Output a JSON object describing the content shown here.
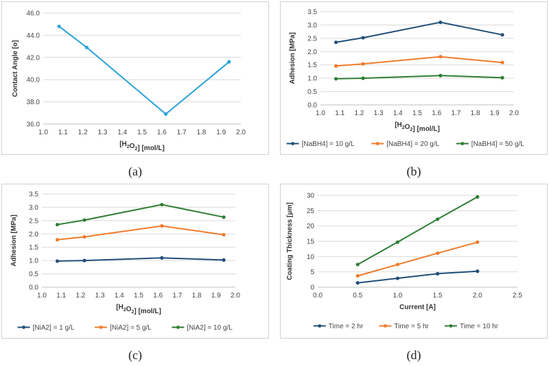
{
  "captions": [
    "(a)",
    "(b)",
    "(c)",
    "(d)"
  ],
  "chart_data": [
    {
      "type": "line",
      "xlabel": "[H2O2] [mol/L]",
      "ylabel": "Contact Angle [o]",
      "xlim": [
        1.0,
        2.0
      ],
      "xstep": 0.1,
      "xdec": 1,
      "ylim": [
        36.0,
        46.0
      ],
      "ystep": 2.0,
      "ydec": 1,
      "grid": "horizontal",
      "legend": "none",
      "series": [
        {
          "name": "",
          "color": "#29a3d8",
          "x": [
            1.08,
            1.22,
            1.62,
            1.94
          ],
          "y": [
            44.8,
            42.9,
            36.9,
            41.6
          ]
        }
      ]
    },
    {
      "type": "line",
      "xlabel": "[H2O2] [mol/L]",
      "ylabel": "Adhesion [MPa]",
      "xlim": [
        1.0,
        2.0
      ],
      "xstep": 0.1,
      "xdec": 1,
      "ylim": [
        0.0,
        3.5
      ],
      "ystep": 0.5,
      "ydec": 1,
      "grid": "horizontal",
      "legend": "bottom",
      "series": [
        {
          "name": "[NaBH4] = 10 g/L",
          "color": "#1f4e79",
          "x": [
            1.08,
            1.22,
            1.62,
            1.94
          ],
          "y": [
            2.35,
            2.52,
            3.1,
            2.63
          ]
        },
        {
          "name": "[NaBH4] = 20 g/L",
          "color": "#f07a2a",
          "x": [
            1.08,
            1.22,
            1.62,
            1.94
          ],
          "y": [
            1.46,
            1.54,
            1.81,
            1.59
          ]
        },
        {
          "name": "[NaBH4] = 50 g/L",
          "color": "#2e7d32",
          "x": [
            1.08,
            1.22,
            1.62,
            1.94
          ],
          "y": [
            0.98,
            1.0,
            1.1,
            1.02
          ]
        }
      ]
    },
    {
      "type": "line",
      "xlabel": "[H2O2] [mol/L]",
      "ylabel": "Adhesion [MPa]",
      "xlim": [
        1.0,
        2.0
      ],
      "xstep": 0.1,
      "xdec": 1,
      "ylim": [
        0.0,
        3.5
      ],
      "ystep": 0.5,
      "ydec": 1,
      "grid": "horizontal",
      "legend": "bottom",
      "series": [
        {
          "name": "[NiA2] = 1 g/L",
          "color": "#1f4e79",
          "x": [
            1.08,
            1.22,
            1.62,
            1.94
          ],
          "y": [
            0.98,
            1.0,
            1.1,
            1.02
          ]
        },
        {
          "name": "[NiA2] = 5 g/L",
          "color": "#f07a2a",
          "x": [
            1.08,
            1.22,
            1.62,
            1.94
          ],
          "y": [
            1.78,
            1.89,
            2.3,
            1.97
          ]
        },
        {
          "name": "[NiA2] = 10 g/L",
          "color": "#2e7d32",
          "x": [
            1.08,
            1.22,
            1.62,
            1.94
          ],
          "y": [
            2.35,
            2.52,
            3.1,
            2.63
          ]
        }
      ]
    },
    {
      "type": "line",
      "xlabel": "Current [A]",
      "ylabel": "Coating Thickness [μm]",
      "xlim": [
        0.0,
        2.5
      ],
      "xstep": 0.5,
      "xdec": 1,
      "ylim": [
        0,
        30
      ],
      "ystep": 5,
      "ydec": 0,
      "grid": "horizontal",
      "legend": "bottom",
      "series": [
        {
          "name": "Time = 2 hr",
          "color": "#1f4e79",
          "x": [
            0.5,
            1.0,
            1.5,
            2.0
          ],
          "y": [
            1.4,
            2.9,
            4.4,
            5.2
          ]
        },
        {
          "name": "Time = 5 hr",
          "color": "#f07a2a",
          "x": [
            0.5,
            1.0,
            1.5,
            2.0
          ],
          "y": [
            3.7,
            7.4,
            11.1,
            14.7
          ]
        },
        {
          "name": "Time = 10 hr",
          "color": "#2e7d32",
          "x": [
            0.5,
            1.0,
            1.5,
            2.0
          ],
          "y": [
            7.4,
            14.7,
            22.2,
            29.5
          ]
        }
      ]
    }
  ]
}
